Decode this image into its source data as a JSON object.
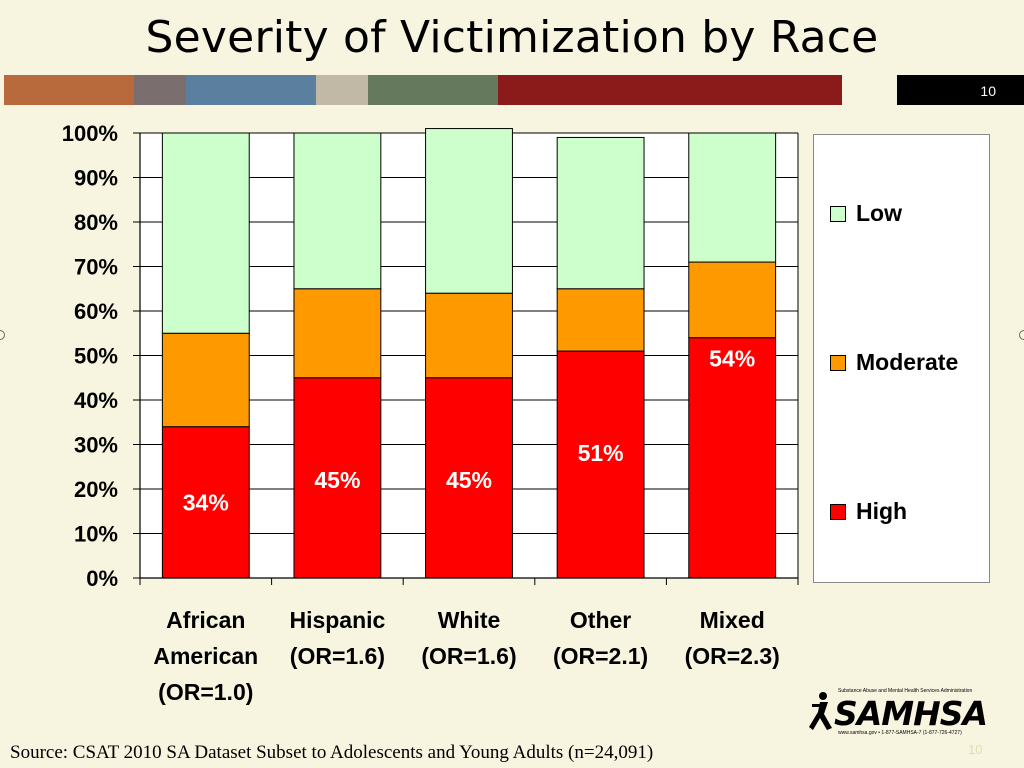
{
  "slide": {
    "title": "Severity of Victimization by Race",
    "number": "10",
    "footer_number": "10",
    "source": "Source: CSAT 2010 SA Dataset Subset to Adolescents and Young Adults (n=24,091)"
  },
  "colors": {
    "background": "#f7f4df",
    "stripes": [
      "#b86a3c",
      "#7a6e6e",
      "#5b7f9e",
      "#c1b8a6",
      "#657a5d",
      "#8b1a1a"
    ],
    "high": "#ff0000",
    "moderate": "#ff9900",
    "low": "#ccffcc"
  },
  "logo": {
    "name": "SAMHSA",
    "tagline": "Substance Abuse and Mental Health Services Administration",
    "contact": "www.samhsa.gov • 1-877-SAMHSA-7 (1-877-726-4727)"
  },
  "chart_data": {
    "type": "bar",
    "stacked": true,
    "categories": [
      [
        "African",
        "American",
        "(OR=1.0)"
      ],
      [
        "Hispanic",
        "(OR=1.6)"
      ],
      [
        "White",
        "(OR=1.6)"
      ],
      [
        "Other",
        "(OR=2.1)"
      ],
      [
        "Mixed",
        "(OR=2.3)"
      ]
    ],
    "series": [
      {
        "name": "High",
        "values": [
          34,
          45,
          45,
          51,
          54
        ],
        "labels": [
          "34%",
          "45%",
          "45%",
          "51%",
          "54%"
        ]
      },
      {
        "name": "Moderate",
        "values": [
          21,
          20,
          19,
          14,
          17
        ]
      },
      {
        "name": "Low",
        "values": [
          45,
          35,
          37,
          34,
          29
        ]
      }
    ],
    "legend_order": [
      "Low",
      "Moderate",
      "High"
    ],
    "yticks": [
      "0%",
      "10%",
      "20%",
      "30%",
      "40%",
      "50%",
      "60%",
      "70%",
      "80%",
      "90%",
      "100%"
    ],
    "ylim": [
      0,
      100
    ],
    "grid": true,
    "legend_position": "right"
  }
}
